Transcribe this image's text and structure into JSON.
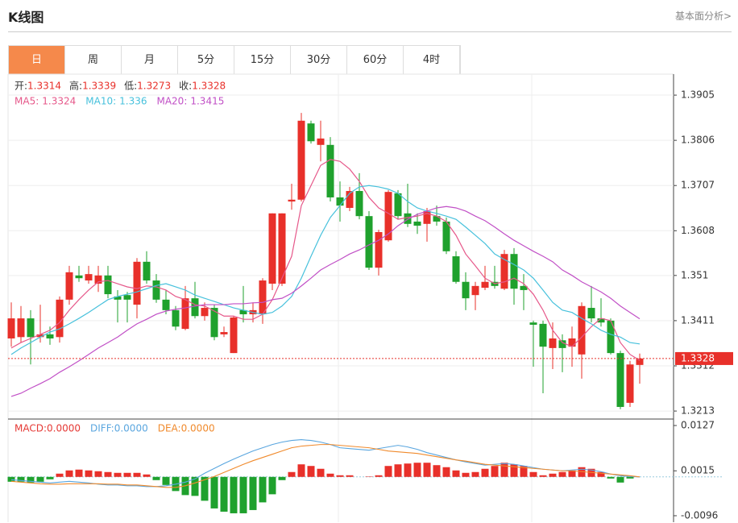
{
  "header": {
    "title": "K线图",
    "link": "基本面分析>"
  },
  "tabs": [
    "日",
    "周",
    "月",
    "5分",
    "15分",
    "30分",
    "60分",
    "4时"
  ],
  "active_tab": 0,
  "chart_data": {
    "type": "candlestick",
    "ohlc_labels": [
      "开:",
      "高:",
      "低:",
      "收:"
    ],
    "up_color": "#e8302a",
    "down_color": "#1fa12d",
    "open": [
      1.3372,
      1.3375,
      1.3416,
      1.3375,
      1.3381,
      1.3375,
      1.3457,
      1.351,
      1.3499,
      1.3492,
      1.351,
      1.3464,
      1.3467,
      1.3446,
      1.354,
      1.3499,
      1.3457,
      1.3434,
      1.3393,
      1.346,
      1.3421,
      1.3439,
      1.3381,
      1.334,
      1.3434,
      1.3425,
      1.3425,
      1.3492,
      1.3492,
      1.3672,
      1.3676,
      1.3843,
      1.3796,
      1.3796,
      1.3681,
      1.3658,
      1.3695,
      1.364,
      1.3527,
      1.3587,
      1.369,
      1.3646,
      1.3628,
      1.3623,
      1.364,
      1.3628,
      1.3552,
      1.3496,
      1.3467,
      1.3483,
      1.3496,
      1.3481,
      1.3557,
      1.3487,
      1.3407,
      1.3404,
      1.3351,
      1.3368,
      1.3354,
      1.3337,
      1.3439,
      1.3416,
      1.3411,
      1.334,
      1.3231,
      1.3314
    ],
    "high": [
      1.3451,
      1.3443,
      1.3434,
      1.3446,
      1.3398,
      1.3464,
      1.3531,
      1.3531,
      1.3531,
      1.3531,
      1.3531,
      1.3478,
      1.3474,
      1.3548,
      1.3563,
      1.3513,
      1.3478,
      1.3443,
      1.3487,
      1.3496,
      1.3451,
      1.3446,
      1.3398,
      1.3421,
      1.3487,
      1.3451,
      1.3504,
      1.3646,
      1.3646,
      1.3711,
      1.3866,
      1.3849,
      1.3849,
      1.3813,
      1.3716,
      1.3704,
      1.3734,
      1.3651,
      1.361,
      1.3697,
      1.3697,
      1.3711,
      1.3646,
      1.3658,
      1.3663,
      1.3637,
      1.3563,
      1.3517,
      1.3496,
      1.3531,
      1.3531,
      1.3566,
      1.357,
      1.3513,
      1.3411,
      1.3411,
      1.3407,
      1.3381,
      1.3398,
      1.3451,
      1.3487,
      1.346,
      1.3416,
      1.3345,
      1.3323,
      1.3339
    ],
    "low": [
      1.3354,
      1.3363,
      1.3315,
      1.3363,
      1.3358,
      1.3363,
      1.3446,
      1.3496,
      1.3492,
      1.3474,
      1.346,
      1.3407,
      1.3407,
      1.3416,
      1.3492,
      1.345,
      1.3425,
      1.339,
      1.339,
      1.3416,
      1.3411,
      1.3368,
      1.3375,
      1.334,
      1.3407,
      1.3407,
      1.3404,
      1.3478,
      1.3487,
      1.3654,
      1.3672,
      1.3799,
      1.376,
      1.3672,
      1.3628,
      1.3651,
      1.3633,
      1.3522,
      1.351,
      1.3584,
      1.3633,
      1.3616,
      1.3601,
      1.3584,
      1.3619,
      1.3557,
      1.3492,
      1.3434,
      1.3434,
      1.3478,
      1.3481,
      1.3478,
      1.3446,
      1.3434,
      1.331,
      1.3252,
      1.3305,
      1.3298,
      1.331,
      1.3284,
      1.3407,
      1.3398,
      1.3337,
      1.3217,
      1.3222,
      1.3273
    ],
    "close": [
      1.3416,
      1.3416,
      1.3375,
      1.3381,
      1.3372,
      1.3457,
      1.3517,
      1.3504,
      1.3513,
      1.351,
      1.3469,
      1.3457,
      1.3457,
      1.354,
      1.3499,
      1.3457,
      1.3434,
      1.3398,
      1.346,
      1.3421,
      1.3439,
      1.3375,
      1.3386,
      1.3418,
      1.3425,
      1.3434,
      1.3499,
      1.3646,
      1.3646,
      1.3676,
      1.3849,
      1.3804,
      1.381,
      1.3681,
      1.3663,
      1.3695,
      1.364,
      1.3527,
      1.3605,
      1.3693,
      1.364,
      1.3623,
      1.3619,
      1.3651,
      1.3628,
      1.3563,
      1.3496,
      1.346,
      1.3487,
      1.3496,
      1.3487,
      1.3557,
      1.3481,
      1.3478,
      1.3402,
      1.3354,
      1.3372,
      1.3351,
      1.3372,
      1.3443,
      1.3416,
      1.3407,
      1.334,
      1.3222,
      1.3315,
      1.3328
    ],
    "ylim": [
      1.3199,
      1.3951
    ],
    "yticks": [
      1.3905,
      1.3806,
      1.3707,
      1.3608,
      1.351,
      1.3411,
      1.3312,
      1.3213
    ],
    "grid": true,
    "current_price_color": "#e8302a",
    "ma": [
      {
        "name": "MA5:",
        "color": "#e6588a",
        "values": [
          1.3351,
          1.3363,
          1.3372,
          1.3381,
          1.339,
          1.3407,
          1.3434,
          1.3457,
          1.3478,
          1.3496,
          1.3499,
          1.3492,
          1.3485,
          1.3481,
          1.3487,
          1.3485,
          1.3478,
          1.3464,
          1.3457,
          1.3446,
          1.3443,
          1.3432,
          1.3421,
          1.3421,
          1.3414,
          1.3414,
          1.3425,
          1.3457,
          1.3504,
          1.3552,
          1.3663,
          1.3707,
          1.3751,
          1.3764,
          1.376,
          1.3743,
          1.3716,
          1.3681,
          1.3658,
          1.3646,
          1.3633,
          1.3637,
          1.364,
          1.3646,
          1.364,
          1.3628,
          1.3598,
          1.3557,
          1.3531,
          1.3504,
          1.3492,
          1.3496,
          1.3504,
          1.3492,
          1.3469,
          1.3434,
          1.339,
          1.3363,
          1.3354,
          1.3375,
          1.3398,
          1.3416,
          1.3411,
          1.3363,
          1.3337,
          1.3324
        ]
      },
      {
        "name": "MA10:",
        "color": "#47c1dc",
        "values": [
          1.3337,
          1.3351,
          1.3363,
          1.3375,
          1.3386,
          1.3393,
          1.3404,
          1.3416,
          1.3429,
          1.3443,
          1.3457,
          1.3464,
          1.3469,
          1.3474,
          1.3481,
          1.3488,
          1.3492,
          1.3485,
          1.3478,
          1.3467,
          1.346,
          1.3453,
          1.3446,
          1.3439,
          1.3434,
          1.3429,
          1.3425,
          1.3429,
          1.3443,
          1.3464,
          1.3504,
          1.3552,
          1.3598,
          1.3637,
          1.3663,
          1.369,
          1.3704,
          1.3707,
          1.3704,
          1.3699,
          1.369,
          1.3672,
          1.3658,
          1.3651,
          1.3646,
          1.364,
          1.3633,
          1.3616,
          1.3598,
          1.358,
          1.3557,
          1.3545,
          1.3534,
          1.3522,
          1.3504,
          1.3478,
          1.3451,
          1.3434,
          1.3429,
          1.3416,
          1.3404,
          1.339,
          1.3381,
          1.3375,
          1.3363,
          1.336
        ]
      },
      {
        "name": "MA20:",
        "color": "#c150c6",
        "values": [
          1.3245,
          1.3252,
          1.3263,
          1.3273,
          1.3284,
          1.3298,
          1.331,
          1.3323,
          1.3337,
          1.3351,
          1.3363,
          1.3375,
          1.339,
          1.3404,
          1.3414,
          1.3425,
          1.3432,
          1.3436,
          1.3439,
          1.3443,
          1.3446,
          1.3446,
          1.3446,
          1.3448,
          1.3448,
          1.345,
          1.3451,
          1.3457,
          1.346,
          1.3471,
          1.3487,
          1.3504,
          1.3522,
          1.3534,
          1.3545,
          1.3557,
          1.3566,
          1.3577,
          1.3587,
          1.3601,
          1.3619,
          1.3633,
          1.3644,
          1.3651,
          1.3658,
          1.3661,
          1.3658,
          1.3651,
          1.364,
          1.363,
          1.3616,
          1.3601,
          1.3587,
          1.3575,
          1.3563,
          1.3552,
          1.354,
          1.3522,
          1.351,
          1.3496,
          1.3485,
          1.3474,
          1.346,
          1.3443,
          1.3429,
          1.3415
        ]
      }
    ],
    "macd": {
      "ylim": [
        -0.0112,
        0.0141
      ],
      "yticks": [
        0.0127,
        0.0015,
        -0.0096
      ],
      "histogram": {
        "name": "MACD:",
        "color": "#e53935",
        "value_label": "0.0000",
        "values": [
          -0.0012,
          -0.0012,
          -0.0014,
          -0.0012,
          -0.0006,
          0.0008,
          0.0016,
          0.0018,
          0.0016,
          0.0014,
          0.0012,
          0.001,
          0.001,
          0.001,
          0.0006,
          -0.0008,
          -0.002,
          -0.0035,
          -0.0045,
          -0.0047,
          -0.0059,
          -0.0078,
          -0.0086,
          -0.009,
          -0.009,
          -0.0082,
          -0.0063,
          -0.0043,
          -0.0008,
          0.0012,
          0.0031,
          0.0027,
          0.002,
          0.0008,
          0.0004,
          0.0004,
          0.0,
          0.0001,
          0.0004,
          0.0027,
          0.0031,
          0.0033,
          0.0035,
          0.0035,
          0.0029,
          0.0024,
          0.0016,
          0.001,
          0.0012,
          0.002,
          0.0027,
          0.0035,
          0.0031,
          0.0027,
          0.0012,
          0.0004,
          0.0008,
          0.0012,
          0.0016,
          0.0024,
          0.002,
          0.0012,
          -0.0004,
          -0.0014,
          -0.0004,
          0.0
        ]
      },
      "series": [
        {
          "name": "DIFF:",
          "color": "#5aa6df",
          "value_label": "0.0000",
          "values": [
            -0.0007,
            -0.0009,
            -0.0011,
            -0.0013,
            -0.0015,
            -0.0013,
            -0.0011,
            -0.0013,
            -0.0015,
            -0.0018,
            -0.002,
            -0.002,
            -0.0022,
            -0.0022,
            -0.0024,
            -0.0024,
            -0.0022,
            -0.0018,
            -0.0013,
            -0.0005,
            0.0009,
            0.0021,
            0.0033,
            0.0044,
            0.0054,
            0.0064,
            0.0072,
            0.008,
            0.0086,
            0.009,
            0.0092,
            0.009,
            0.0086,
            0.008,
            0.0072,
            0.007,
            0.0068,
            0.0066,
            0.007,
            0.0074,
            0.0078,
            0.0074,
            0.0068,
            0.006,
            0.0054,
            0.0048,
            0.0042,
            0.0037,
            0.0033,
            0.0029,
            0.0031,
            0.0033,
            0.0031,
            0.0027,
            0.0023,
            0.0019,
            0.0017,
            0.0015,
            0.0017,
            0.0019,
            0.0017,
            0.0013,
            0.0007,
            0.0003,
            0.0001,
            0.0
          ]
        },
        {
          "name": "DEA:",
          "color": "#f08a2c",
          "value_label": "0.0000",
          "values": [
            -0.0011,
            -0.0013,
            -0.0015,
            -0.0017,
            -0.0018,
            -0.0018,
            -0.0017,
            -0.0017,
            -0.0017,
            -0.0017,
            -0.0018,
            -0.0018,
            -0.002,
            -0.002,
            -0.0022,
            -0.0024,
            -0.0026,
            -0.0026,
            -0.0022,
            -0.0015,
            -0.0007,
            0.0001,
            0.0011,
            0.0021,
            0.0031,
            0.004,
            0.0048,
            0.0056,
            0.0064,
            0.0072,
            0.0076,
            0.0078,
            0.008,
            0.008,
            0.0078,
            0.0076,
            0.0074,
            0.0072,
            0.0068,
            0.0064,
            0.0062,
            0.006,
            0.0058,
            0.0054,
            0.005,
            0.0046,
            0.0042,
            0.0039,
            0.0035,
            0.0031,
            0.0029,
            0.0027,
            0.0025,
            0.0023,
            0.0021,
            0.0019,
            0.0017,
            0.0015,
            0.0015,
            0.0013,
            0.0011,
            0.0009,
            0.0007,
            0.0005,
            0.0003,
            0.0
          ]
        }
      ]
    }
  }
}
